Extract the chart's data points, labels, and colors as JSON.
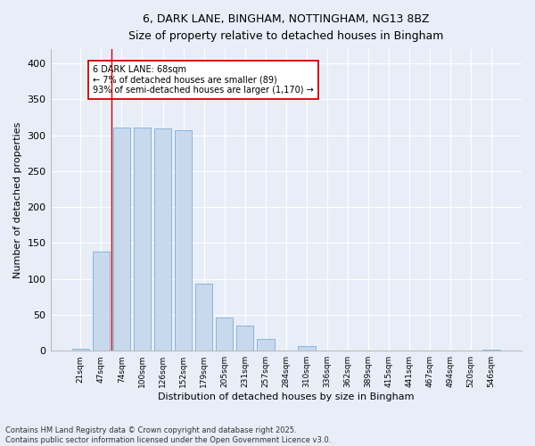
{
  "title_line1": "6, DARK LANE, BINGHAM, NOTTINGHAM, NG13 8BZ",
  "title_line2": "Size of property relative to detached houses in Bingham",
  "xlabel": "Distribution of detached houses by size in Bingham",
  "ylabel": "Number of detached properties",
  "bar_color": "#c8d9ee",
  "bar_edge_color": "#7aaed6",
  "categories": [
    "21sqm",
    "47sqm",
    "74sqm",
    "100sqm",
    "126sqm",
    "152sqm",
    "179sqm",
    "205sqm",
    "231sqm",
    "257sqm",
    "284sqm",
    "310sqm",
    "336sqm",
    "362sqm",
    "389sqm",
    "415sqm",
    "441sqm",
    "467sqm",
    "494sqm",
    "520sqm",
    "546sqm"
  ],
  "values": [
    3,
    138,
    311,
    311,
    310,
    307,
    93,
    46,
    35,
    17,
    0,
    6,
    0,
    0,
    0,
    0,
    0,
    0,
    0,
    0,
    1
  ],
  "ylim": [
    0,
    420
  ],
  "yticks": [
    0,
    50,
    100,
    150,
    200,
    250,
    300,
    350,
    400
  ],
  "vline_x": 1.5,
  "annotation_text": "6 DARK LANE: 68sqm\n← 7% of detached houses are smaller (89)\n93% of semi-detached houses are larger (1,170) →",
  "background_color": "#e8eef8",
  "plot_background": "#e8eef8",
  "grid_color": "#ffffff",
  "vline_color": "#cc0000",
  "footer_line1": "Contains HM Land Registry data © Crown copyright and database right 2025.",
  "footer_line2": "Contains public sector information licensed under the Open Government Licence v3.0."
}
